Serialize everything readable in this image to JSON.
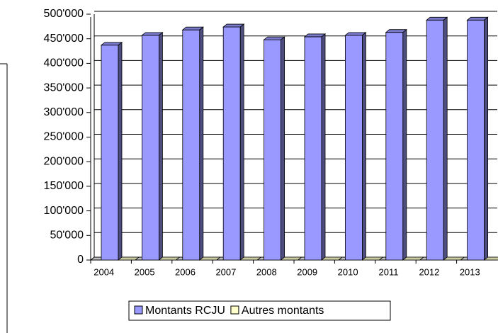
{
  "chart_data": {
    "type": "bar3d",
    "categories": [
      "2004",
      "2005",
      "2006",
      "2007",
      "2008",
      "2009",
      "2010",
      "2011",
      "2012",
      "2013"
    ],
    "series": [
      {
        "name": "Montants RCJU",
        "color": "#9999ff",
        "values": [
          437000,
          457000,
          468000,
          474000,
          448000,
          454000,
          457000,
          463000,
          488000,
          488000
        ]
      },
      {
        "name": "Autres montants",
        "color": "#ffffcc",
        "values": [
          0,
          0,
          0,
          0,
          0,
          0,
          0,
          0,
          0,
          0
        ]
      }
    ],
    "ylim": [
      0,
      500000
    ],
    "yticks": [
      0,
      {
        "value": 50000,
        "label": "50'000"
      },
      {
        "value": 100000,
        "label": "100'000"
      },
      {
        "value": 150000,
        "label": "150'000"
      },
      {
        "value": 200000,
        "label": "200'000"
      },
      {
        "value": 250000,
        "label": "250'000"
      },
      {
        "value": 300000,
        "label": "300'000"
      },
      {
        "value": 350000,
        "label": "350'000"
      },
      {
        "value": 400000,
        "label": "400'000"
      },
      {
        "value": 450000,
        "label": "450'000"
      },
      {
        "value": 500000,
        "label": "500'000"
      }
    ],
    "grid": true
  }
}
